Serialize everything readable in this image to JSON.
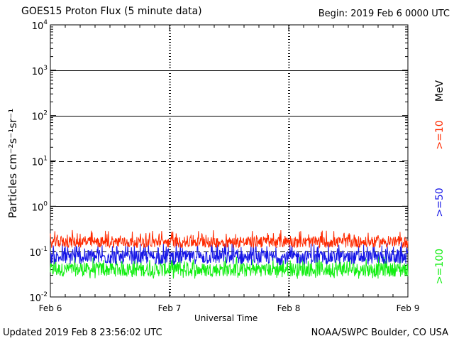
{
  "header": {
    "title": "GOES15 Proton Flux (5 minute data)",
    "begin": "Begin: 2019 Feb 6 0000 UTC"
  },
  "footer": {
    "updated": "Updated 2019 Feb  8 23:56:02 UTC",
    "credit": "NOAA/SWPC Boulder, CO USA"
  },
  "chart_data": {
    "type": "line",
    "title": "GOES15 Proton Flux (5 minute data)",
    "xlabel": "Universal Time",
    "ylabel": "Particles cm⁻²s⁻¹sr⁻¹",
    "yscale": "log",
    "ylim": [
      0.01,
      10000
    ],
    "xlim": [
      0,
      72
    ],
    "x_unit": "hours since Feb 6 00 UTC",
    "x_ticks": [
      {
        "x": 0,
        "label": "Feb 6"
      },
      {
        "x": 24,
        "label": "Feb 7"
      },
      {
        "x": 48,
        "label": "Feb 8"
      },
      {
        "x": 72,
        "label": "Feb 9"
      }
    ],
    "y_ticks": [
      {
        "value": 0.01,
        "base": "10",
        "exp": "-2"
      },
      {
        "value": 0.1,
        "base": "10",
        "exp": "-1"
      },
      {
        "value": 1,
        "base": "10",
        "exp": "0"
      },
      {
        "value": 10,
        "base": "10",
        "exp": "1"
      },
      {
        "value": 100,
        "base": "10",
        "exp": "2"
      },
      {
        "value": 1000,
        "base": "10",
        "exp": "3"
      },
      {
        "value": 10000,
        "base": "10",
        "exp": "4"
      }
    ],
    "threshold_levels": [
      {
        "value": 0.1,
        "style": "dashed"
      },
      {
        "value": 1,
        "style": "solid"
      },
      {
        "value": 10,
        "style": "dashed"
      },
      {
        "value": 100,
        "style": "solid"
      },
      {
        "value": 1000,
        "style": "solid"
      }
    ],
    "unit_label": "MeV",
    "series": [
      {
        "name": ">=10",
        "color": "#ff2a00",
        "baseline": 0.16,
        "noise_low": 0.12,
        "noise_high": 0.3
      },
      {
        "name": ">=50",
        "color": "#1515e6",
        "baseline": 0.075,
        "noise_low": 0.05,
        "noise_high": 0.16
      },
      {
        "name": ">=100",
        "color": "#11ee11",
        "baseline": 0.04,
        "noise_low": 0.025,
        "noise_high": 0.08
      }
    ]
  },
  "colors": {
    "grid": "#000000",
    "background": "#ffffff"
  }
}
